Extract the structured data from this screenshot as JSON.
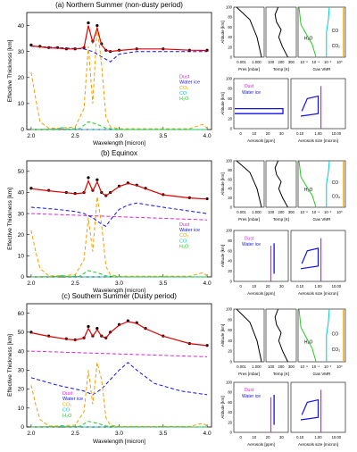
{
  "colors": {
    "dust": "#dd22dd",
    "water_ice": "#1111ee",
    "co2": "#f0a000",
    "co": "#00cccc",
    "h2o": "#22cc22",
    "model": "#dd0000",
    "obs": "#000000"
  },
  "chart_data": [
    {
      "type": "line",
      "title": "(a) Northern Summer (non-dusty period)",
      "xlabel": "Wavelength [micron]",
      "ylabel": "Effective Thickness [km]",
      "xlim": [
        1.95,
        4.05
      ],
      "ylim": [
        0,
        45
      ],
      "xticks": [
        "2.0",
        "2.5",
        "3.0",
        "3.5",
        "4.0"
      ],
      "yticks": [
        "0",
        "10",
        "20",
        "30",
        "40"
      ],
      "legend_position": "right-middle",
      "legend": [
        "Dust",
        "Water ice",
        "CO₂",
        "CO",
        "H₂O"
      ],
      "series": [
        {
          "name": "Dust",
          "x": [
            2.0,
            4.0
          ],
          "y": [
            0,
            0
          ]
        },
        {
          "name": "Water ice",
          "x": [
            2.0,
            2.6,
            2.7,
            2.8,
            2.9,
            3.0,
            3.2,
            3.5,
            4.0
          ],
          "y": [
            32,
            31,
            30,
            28,
            26,
            29,
            30,
            30,
            30
          ]
        },
        {
          "name": "CO₂",
          "x": [
            2.0,
            2.05,
            2.1,
            2.2,
            2.3,
            2.5,
            2.6,
            2.65,
            2.7,
            2.75,
            2.8,
            2.85,
            2.9,
            3.0,
            3.2,
            3.5,
            3.8,
            3.95,
            4.0
          ],
          "y": [
            22,
            12,
            3,
            0.5,
            0.5,
            1,
            8,
            32,
            10,
            40,
            25,
            5,
            1,
            0.3,
            0.3,
            0.3,
            0.3,
            2,
            0.5
          ]
        },
        {
          "name": "CO",
          "x": [
            2.0,
            2.3,
            2.35,
            2.4,
            2.6,
            4.0
          ],
          "y": [
            0,
            0,
            0.8,
            0,
            0,
            0
          ]
        },
        {
          "name": "H₂O",
          "x": [
            2.0,
            2.55,
            2.65,
            2.75,
            2.85,
            3.0,
            4.0
          ],
          "y": [
            0,
            0.3,
            3,
            2,
            0.5,
            0,
            0
          ]
        },
        {
          "name": "Observed",
          "x": [
            2.0,
            2.1,
            2.2,
            2.3,
            2.4,
            2.5,
            2.6,
            2.65,
            2.7,
            2.75,
            2.8,
            2.85,
            2.9,
            3.0,
            3.2,
            3.5,
            3.8,
            4.0
          ],
          "y": [
            32.5,
            32,
            31.5,
            31.5,
            31,
            31,
            31.5,
            41,
            34,
            40,
            33,
            30.5,
            30,
            30.5,
            31,
            31,
            30.5,
            30.5
          ]
        },
        {
          "name": "Model",
          "x": [
            2.0,
            2.1,
            2.2,
            2.3,
            2.4,
            2.5,
            2.6,
            2.65,
            2.7,
            2.75,
            2.8,
            2.85,
            2.9,
            3.0,
            3.2,
            3.5,
            3.8,
            4.0
          ],
          "y": [
            32.2,
            31.8,
            31.4,
            31.3,
            31,
            31,
            31.4,
            40,
            33.5,
            39,
            32.5,
            30.5,
            30,
            30.4,
            31,
            31,
            30.5,
            30.4
          ]
        }
      ]
    },
    {
      "type": "line",
      "title": "(b) Equinox",
      "xlabel": "Wavelength [micron]",
      "ylabel": "Effective Thickness [km]",
      "xlim": [
        1.95,
        4.05
      ],
      "ylim": [
        0,
        55
      ],
      "xticks": [
        "2.0",
        "2.5",
        "3.0",
        "3.5",
        "4.0"
      ],
      "yticks": [
        "0",
        "10",
        "20",
        "30",
        "40",
        "50"
      ],
      "legend_position": "right-middle",
      "legend": [
        "Dust",
        "Water ice",
        "CO₂",
        "CO",
        "H₂O"
      ],
      "series": [
        {
          "name": "Dust",
          "x": [
            2.0,
            4.0
          ],
          "y": [
            30,
            27
          ]
        },
        {
          "name": "Water ice",
          "x": [
            2.0,
            2.3,
            2.5,
            2.6,
            2.7,
            2.8,
            2.85,
            2.9,
            3.0,
            3.1,
            3.2,
            3.5,
            4.0
          ],
          "y": [
            33,
            32,
            31,
            30,
            28,
            25,
            24,
            27,
            32,
            34,
            35,
            33,
            30
          ]
        },
        {
          "name": "CO₂",
          "x": [
            2.0,
            2.05,
            2.1,
            2.2,
            2.3,
            2.5,
            2.6,
            2.65,
            2.7,
            2.75,
            2.8,
            2.85,
            2.9,
            3.0,
            3.2,
            3.5,
            3.8,
            3.95,
            4.0
          ],
          "y": [
            22,
            12,
            4,
            0.5,
            0.5,
            1,
            8,
            28,
            12,
            38,
            25,
            5,
            1,
            0.3,
            0.3,
            0.3,
            0.3,
            2,
            0.5
          ]
        },
        {
          "name": "CO",
          "x": [
            2.0,
            2.3,
            2.35,
            2.4,
            2.6,
            4.0
          ],
          "y": [
            0,
            0,
            0.8,
            0,
            0,
            0
          ]
        },
        {
          "name": "H₂O",
          "x": [
            2.0,
            2.55,
            2.65,
            2.75,
            2.85,
            3.0,
            4.0
          ],
          "y": [
            0,
            0.3,
            3,
            2,
            0.5,
            0,
            0
          ]
        },
        {
          "name": "Observed",
          "x": [
            2.0,
            2.2,
            2.4,
            2.5,
            2.6,
            2.65,
            2.7,
            2.75,
            2.8,
            2.85,
            2.9,
            3.0,
            3.1,
            3.2,
            3.3,
            3.5,
            3.8,
            4.0
          ],
          "y": [
            42,
            41,
            40,
            39.5,
            40,
            47,
            41,
            46,
            40,
            38.5,
            40,
            43,
            44.5,
            43.5,
            42,
            39,
            37.5,
            37
          ]
        },
        {
          "name": "Model",
          "x": [
            2.0,
            2.2,
            2.4,
            2.5,
            2.6,
            2.65,
            2.7,
            2.75,
            2.8,
            2.85,
            2.9,
            3.0,
            3.1,
            3.2,
            3.3,
            3.5,
            3.8,
            4.0
          ],
          "y": [
            41.8,
            40.8,
            39.9,
            39.4,
            39.8,
            45.5,
            40.7,
            45,
            39.8,
            38.4,
            39.9,
            42.8,
            44.3,
            43.3,
            41.8,
            38.9,
            37.4,
            36.9
          ]
        }
      ]
    },
    {
      "type": "line",
      "title": "(c) Southern Summer (Dusty period)",
      "xlabel": "Wavelength [micron]",
      "ylabel": "Effective Thickness [km]",
      "xlim": [
        1.95,
        4.05
      ],
      "ylim": [
        0,
        65
      ],
      "xticks": [
        "2.0",
        "2.5",
        "3.0",
        "3.5",
        "4.0"
      ],
      "yticks": [
        "0",
        "10",
        "20",
        "30",
        "40",
        "50",
        "60"
      ],
      "legend_position": "left-bottom",
      "legend": [
        "Dust",
        "Water ice",
        "CO₂",
        "CO",
        "H₂O"
      ],
      "series": [
        {
          "name": "Dust",
          "x": [
            2.0,
            4.0
          ],
          "y": [
            40,
            37
          ]
        },
        {
          "name": "Water ice",
          "x": [
            2.0,
            2.3,
            2.6,
            2.7,
            2.8,
            3.0,
            3.1,
            3.2,
            3.4,
            3.7,
            4.0
          ],
          "y": [
            26,
            22,
            19,
            17,
            20,
            30,
            34,
            30,
            23,
            19,
            17
          ]
        },
        {
          "name": "CO₂",
          "x": [
            2.0,
            2.05,
            2.1,
            2.2,
            2.3,
            2.5,
            2.6,
            2.65,
            2.7,
            2.75,
            2.8,
            2.85,
            2.9,
            3.0,
            3.2,
            3.5,
            3.8,
            3.95,
            4.0
          ],
          "y": [
            22,
            12,
            4,
            0.5,
            0.5,
            1,
            8,
            30,
            12,
            34,
            25,
            5,
            1,
            0.3,
            0.3,
            0.3,
            0.3,
            2,
            0.5
          ]
        },
        {
          "name": "CO",
          "x": [
            2.0,
            2.3,
            2.35,
            2.4,
            2.6,
            4.0
          ],
          "y": [
            0,
            0,
            0.8,
            0,
            0,
            0
          ]
        },
        {
          "name": "H₂O",
          "x": [
            2.0,
            2.55,
            2.65,
            2.75,
            2.85,
            3.0,
            4.0
          ],
          "y": [
            0,
            0.3,
            3,
            2,
            0.5,
            0,
            0
          ]
        },
        {
          "name": "Observed",
          "x": [
            2.0,
            2.2,
            2.4,
            2.5,
            2.6,
            2.65,
            2.7,
            2.75,
            2.8,
            2.85,
            2.9,
            3.0,
            3.1,
            3.2,
            3.3,
            3.5,
            3.8,
            4.0
          ],
          "y": [
            50,
            48,
            46.5,
            46,
            47,
            53,
            48,
            52,
            48,
            47,
            50,
            54,
            56,
            55,
            52,
            48,
            44,
            43
          ]
        },
        {
          "name": "Model",
          "x": [
            2.0,
            2.2,
            2.4,
            2.5,
            2.6,
            2.65,
            2.7,
            2.75,
            2.8,
            2.85,
            2.9,
            3.0,
            3.1,
            3.2,
            3.3,
            3.5,
            3.8,
            4.0
          ],
          "y": [
            49.7,
            47.8,
            46.3,
            45.9,
            46.8,
            52,
            47.8,
            51.3,
            47.8,
            46.9,
            49.8,
            53.7,
            55.6,
            54.6,
            51.8,
            47.9,
            44,
            42.9
          ]
        }
      ]
    }
  ],
  "small_panels": [
    {
      "pres": {
        "xlabel": "Pres [mbar]",
        "xticks": [
          "0.001",
          "1.000"
        ],
        "yticks": [
          "0",
          "20",
          "40",
          "60",
          "80",
          "100"
        ],
        "ylabel": "Altitude [km]"
      },
      "temp": {
        "xlabel": "Temp [K]",
        "xticks": [
          "100",
          "200",
          "300"
        ]
      },
      "vmr": {
        "xlabel": "Gas VMR",
        "xticks": [
          "10⁻⁶",
          "10⁻⁴",
          "10⁻²",
          "10⁰"
        ],
        "labels": [
          "H₂O",
          "CO",
          "CO₂"
        ]
      },
      "aero": {
        "xlabel": "Aerosols [ppm]",
        "xticks": [
          "0",
          "10",
          "20",
          "30"
        ],
        "yticks": [
          "0",
          "20",
          "40",
          "60",
          "80",
          "100"
        ],
        "ylabel": "Altitude [km]",
        "legend": [
          "Dust",
          "Water ice"
        ]
      },
      "size": {
        "xlabel": "Aerosols size [micron]",
        "xticks": [
          "0.10",
          "1.00",
          "10.00"
        ]
      }
    },
    {
      "pres": {
        "xlabel": "Pres [mbar]",
        "xticks": [
          "0.001",
          "1.000"
        ],
        "yticks": [
          "0",
          "20",
          "40",
          "60",
          "80",
          "100"
        ],
        "ylabel": "Altitude [km]"
      },
      "temp": {
        "xlabel": "Temp [K]",
        "xticks": [
          "100",
          "200",
          "300"
        ]
      },
      "vmr": {
        "xlabel": "Gas VMR",
        "xticks": [
          "10⁻⁶",
          "10⁻⁴",
          "10⁻²",
          "10⁰"
        ],
        "labels": [
          "H₂O",
          "CO",
          "CO₂"
        ]
      },
      "aero": {
        "xlabel": "Aerosols [ppm]",
        "xticks": [
          "0",
          "10",
          "20",
          "30"
        ],
        "yticks": [
          "0",
          "20",
          "40",
          "60",
          "80",
          "100"
        ],
        "ylabel": "Altitude [km]",
        "legend": [
          "Dust",
          "Water ice"
        ]
      },
      "size": {
        "xlabel": "Aerosols size [micron]",
        "xticks": [
          "0.10",
          "1.00",
          "10.00"
        ]
      }
    },
    {
      "pres": {
        "xlabel": "Pres [mbar]",
        "xticks": [
          "0.001",
          "1.000"
        ],
        "yticks": [
          "0",
          "20",
          "40",
          "60",
          "80",
          "100"
        ],
        "ylabel": "Altitude [km]"
      },
      "temp": {
        "xlabel": "Temp [K]",
        "xticks": [
          "100",
          "200",
          "300"
        ]
      },
      "vmr": {
        "xlabel": "Gas VMR",
        "xticks": [
          "10⁻⁶",
          "10⁻⁴",
          "10⁻²",
          "10⁰"
        ],
        "labels": [
          "H₂O",
          "CO",
          "CO₂"
        ]
      },
      "aero": {
        "xlabel": "Aerosols [ppm]",
        "xticks": [
          "0",
          "10",
          "20",
          "30"
        ],
        "yticks": [
          "0",
          "20",
          "40",
          "60",
          "80",
          "100"
        ],
        "ylabel": "Altitude [km]",
        "legend": [
          "Dust",
          "Water ice"
        ]
      },
      "size": {
        "xlabel": "Aerosols size [micron]",
        "xticks": [
          "0.10",
          "1.00",
          "10.00"
        ]
      }
    }
  ]
}
